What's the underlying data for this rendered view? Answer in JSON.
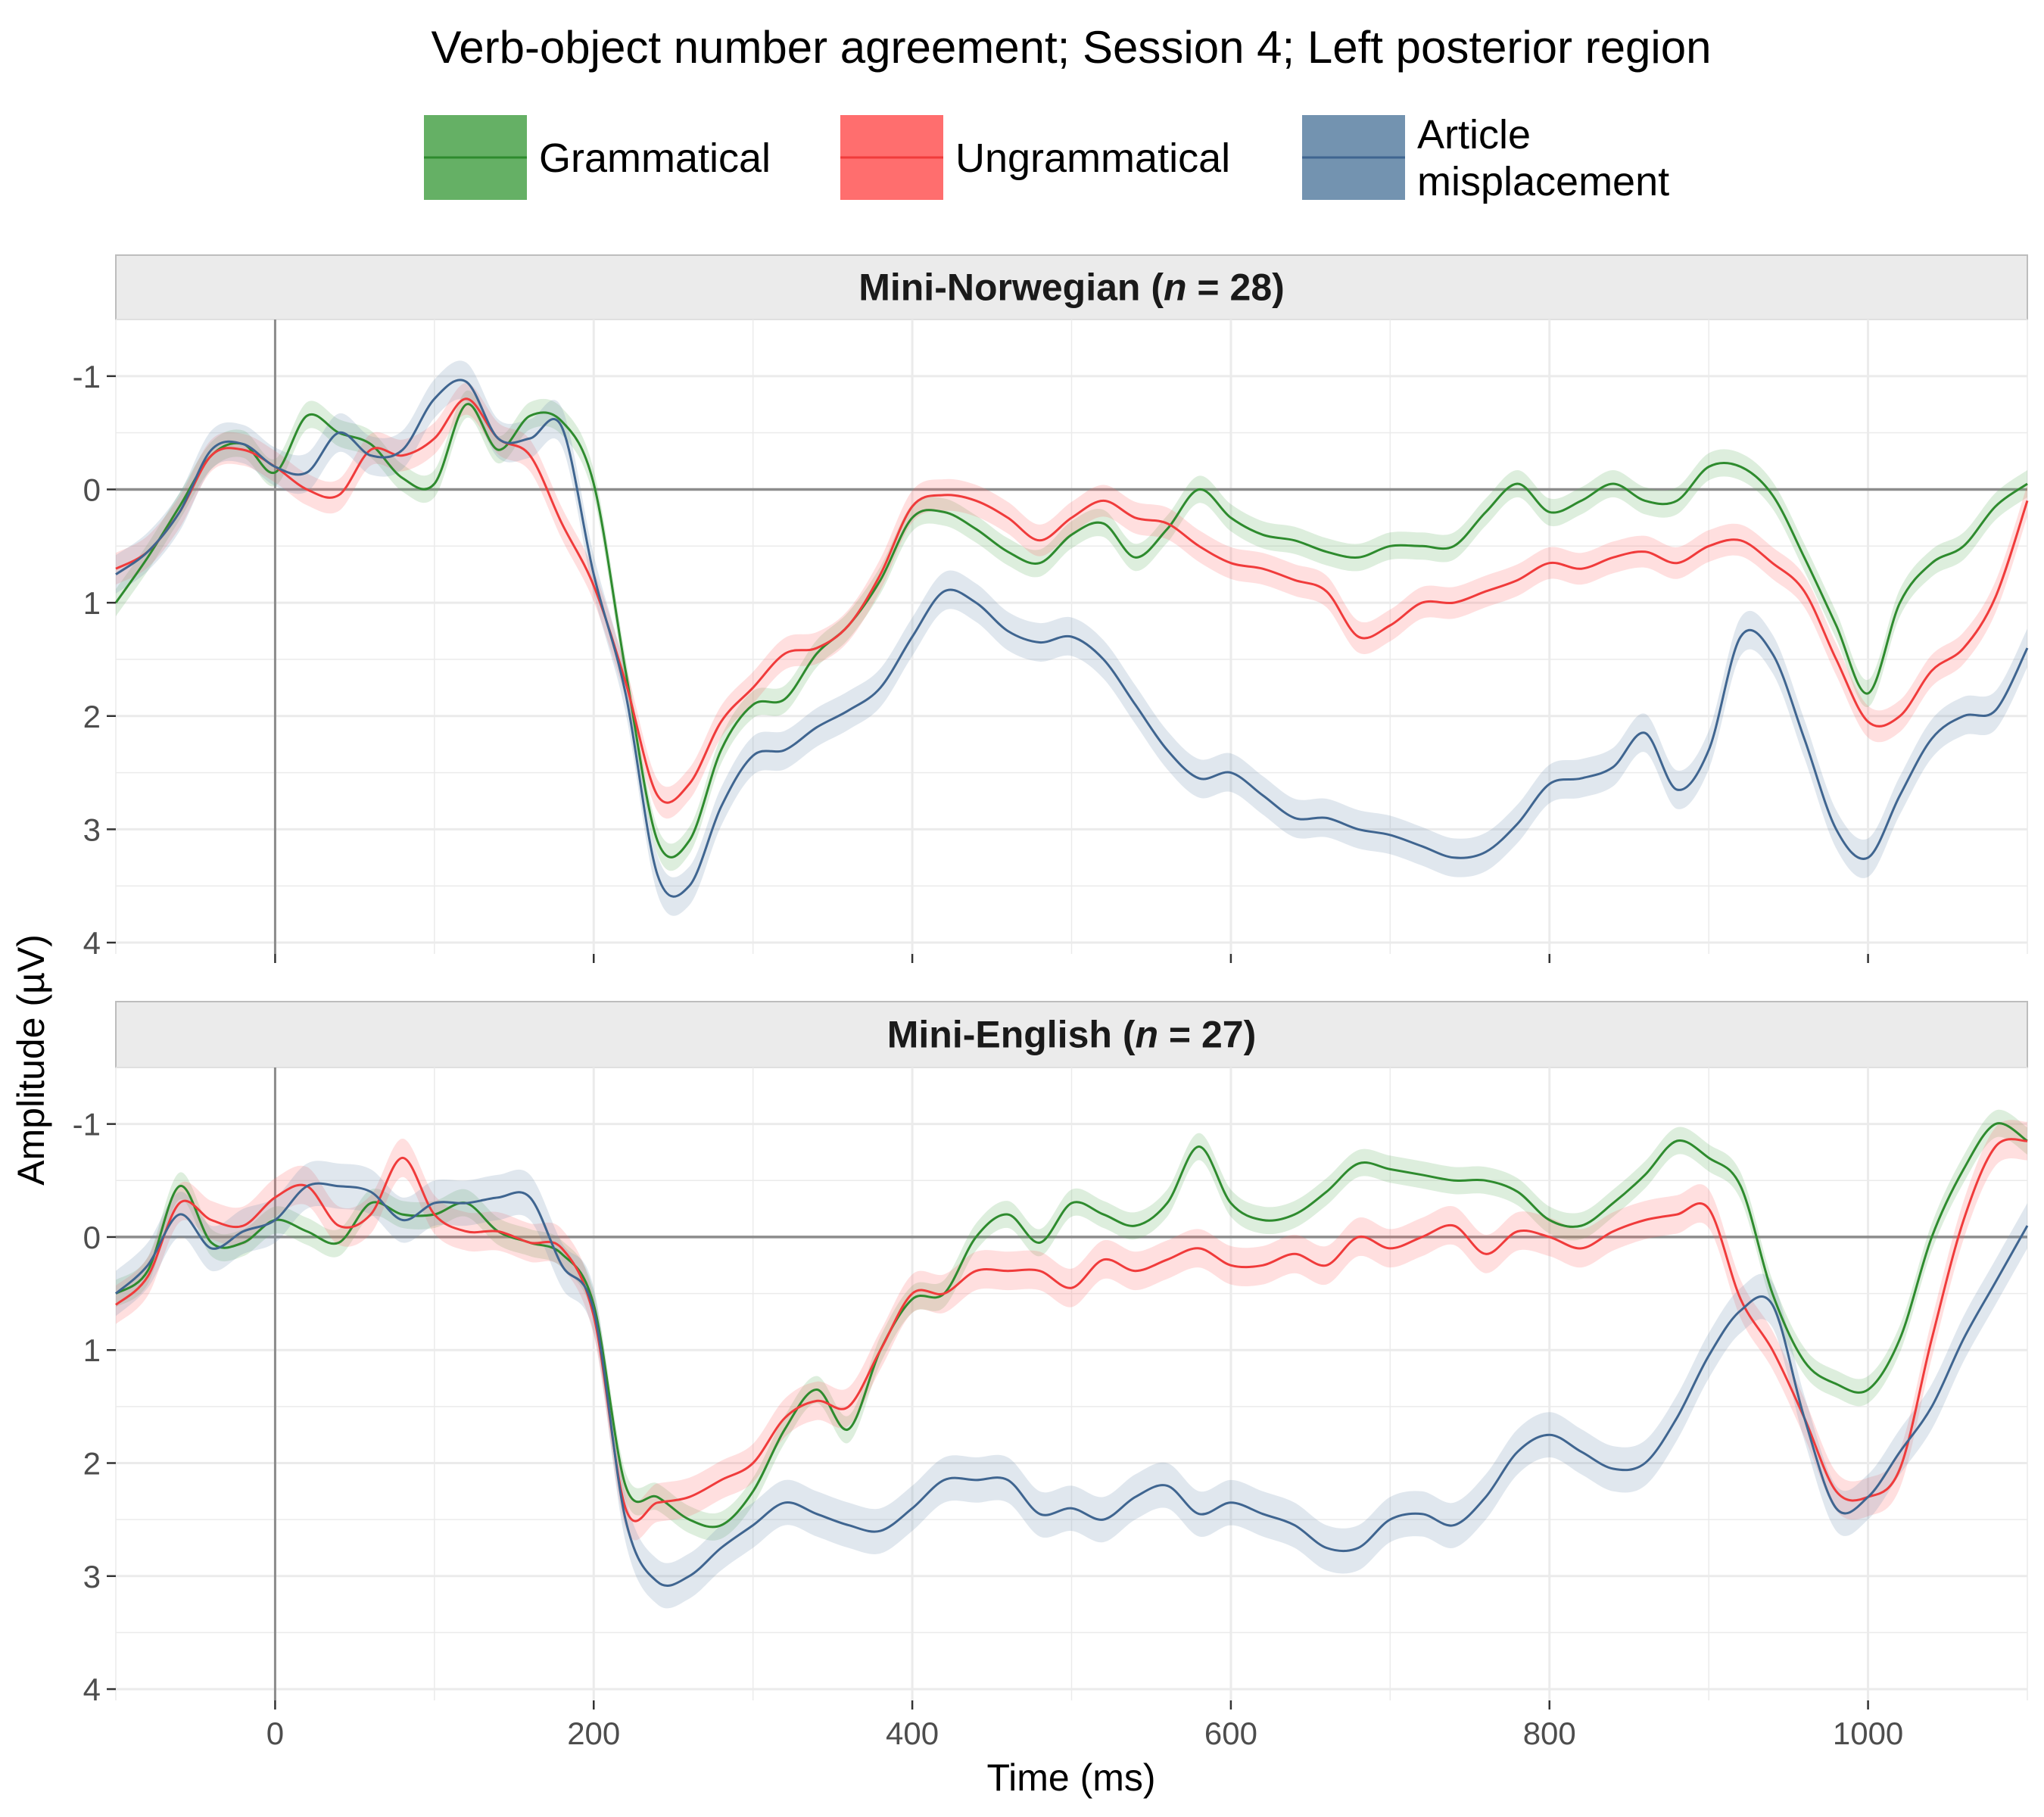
{
  "chart_data": {
    "type": "line",
    "title": "Verb-object number agreement; Session 4; Left posterior region",
    "xlabel": "Time (ms)",
    "ylabel": "Amplitude (µV)",
    "xlim": [
      -100,
      1100
    ],
    "ylim": [
      -1.5,
      4.1
    ],
    "y_reversed": true,
    "x_ticks": [
      0,
      200,
      400,
      600,
      800,
      1000
    ],
    "y_ticks": [
      -1,
      0,
      1,
      2,
      3,
      4
    ],
    "y_tick_labels": [
      "-1",
      "0",
      "1",
      "2",
      "3",
      "4"
    ],
    "legend_position": "top",
    "grid": true,
    "legend": [
      {
        "key": "grammatical",
        "label": "Grammatical",
        "color": "#2e8b2e",
        "fill": "#65b065"
      },
      {
        "key": "ungrammatical",
        "label": "Ungrammatical",
        "color": "#f03b3b",
        "fill": "#ff6e6e"
      },
      {
        "key": "article",
        "label_lines": [
          "Article",
          "misplacement"
        ],
        "color": "#3f6590",
        "fill": "#7393b0"
      }
    ],
    "x": [
      -100,
      -80,
      -60,
      -40,
      -20,
      0,
      20,
      40,
      60,
      80,
      100,
      120,
      140,
      160,
      180,
      200,
      220,
      240,
      260,
      280,
      300,
      320,
      340,
      360,
      380,
      400,
      420,
      440,
      460,
      480,
      500,
      520,
      540,
      560,
      580,
      600,
      620,
      640,
      660,
      680,
      700,
      720,
      740,
      760,
      780,
      800,
      820,
      840,
      860,
      880,
      900,
      920,
      940,
      960,
      980,
      1000,
      1020,
      1040,
      1060,
      1080,
      1100
    ],
    "panels": [
      {
        "strip_prefix": "Mini-Norwegian (",
        "strip_italic": "n",
        "strip_suffix": " = 28)",
        "series": [
          {
            "key": "grammatical",
            "ci": 0.12,
            "values": [
              1.0,
              0.6,
              0.15,
              -0.3,
              -0.4,
              -0.15,
              -0.65,
              -0.5,
              -0.4,
              -0.1,
              -0.05,
              -0.75,
              -0.35,
              -0.65,
              -0.6,
              -0.05,
              1.6,
              3.1,
              3.1,
              2.3,
              1.9,
              1.85,
              1.45,
              1.2,
              0.8,
              0.25,
              0.2,
              0.35,
              0.55,
              0.65,
              0.4,
              0.3,
              0.6,
              0.35,
              0.0,
              0.25,
              0.4,
              0.45,
              0.55,
              0.6,
              0.5,
              0.5,
              0.5,
              0.2,
              -0.05,
              0.2,
              0.1,
              -0.05,
              0.1,
              0.1,
              -0.2,
              -0.2,
              0.05,
              0.6,
              1.2,
              1.8,
              1.0,
              0.65,
              0.5,
              0.15,
              -0.05
            ]
          },
          {
            "key": "ungrammatical",
            "ci": 0.14,
            "values": [
              0.7,
              0.55,
              0.2,
              -0.3,
              -0.35,
              -0.2,
              0.0,
              0.05,
              -0.35,
              -0.3,
              -0.45,
              -0.8,
              -0.45,
              -0.3,
              0.3,
              0.85,
              1.7,
              2.7,
              2.6,
              2.05,
              1.75,
              1.45,
              1.4,
              1.2,
              0.75,
              0.15,
              0.05,
              0.1,
              0.25,
              0.45,
              0.25,
              0.1,
              0.25,
              0.3,
              0.5,
              0.65,
              0.7,
              0.8,
              0.9,
              1.3,
              1.2,
              1.0,
              1.0,
              0.9,
              0.8,
              0.65,
              0.7,
              0.6,
              0.55,
              0.65,
              0.5,
              0.45,
              0.65,
              0.9,
              1.5,
              2.05,
              2.0,
              1.6,
              1.4,
              0.95,
              0.1
            ]
          },
          {
            "key": "article",
            "ci": 0.17,
            "values": [
              0.75,
              0.55,
              0.2,
              -0.35,
              -0.4,
              -0.2,
              -0.15,
              -0.5,
              -0.3,
              -0.35,
              -0.8,
              -0.95,
              -0.45,
              -0.45,
              -0.55,
              0.75,
              1.8,
              3.4,
              3.5,
              2.8,
              2.35,
              2.3,
              2.1,
              1.95,
              1.75,
              1.3,
              0.9,
              1.0,
              1.25,
              1.35,
              1.3,
              1.5,
              1.9,
              2.3,
              2.55,
              2.5,
              2.7,
              2.9,
              2.9,
              3.0,
              3.05,
              3.15,
              3.25,
              3.2,
              2.95,
              2.6,
              2.55,
              2.45,
              2.15,
              2.65,
              2.3,
              1.3,
              1.45,
              2.2,
              3.0,
              3.25,
              2.7,
              2.2,
              2.0,
              1.95,
              1.4
            ]
          }
        ]
      },
      {
        "strip_prefix": "Mini-English (",
        "strip_italic": "n",
        "strip_suffix": " = 27)",
        "series": [
          {
            "key": "grammatical",
            "ci": 0.12,
            "values": [
              0.5,
              0.3,
              -0.45,
              0.05,
              0.05,
              -0.15,
              -0.05,
              0.05,
              -0.3,
              -0.2,
              -0.2,
              -0.3,
              -0.05,
              0.05,
              0.15,
              0.6,
              2.2,
              2.3,
              2.5,
              2.55,
              2.25,
              1.7,
              1.35,
              1.7,
              1.0,
              0.55,
              0.5,
              0.0,
              -0.2,
              0.05,
              -0.3,
              -0.2,
              -0.1,
              -0.3,
              -0.8,
              -0.3,
              -0.15,
              -0.2,
              -0.4,
              -0.65,
              -0.6,
              -0.55,
              -0.5,
              -0.5,
              -0.4,
              -0.15,
              -0.1,
              -0.3,
              -0.55,
              -0.85,
              -0.7,
              -0.45,
              0.5,
              1.1,
              1.3,
              1.35,
              0.9,
              0.0,
              -0.6,
              -1.0,
              -0.85
            ]
          },
          {
            "key": "ungrammatical",
            "ci": 0.17,
            "values": [
              0.6,
              0.35,
              -0.3,
              -0.15,
              -0.1,
              -0.35,
              -0.45,
              -0.1,
              -0.2,
              -0.7,
              -0.2,
              -0.05,
              -0.05,
              0.05,
              0.1,
              0.7,
              2.4,
              2.35,
              2.3,
              2.15,
              2.0,
              1.6,
              1.45,
              1.5,
              1.0,
              0.5,
              0.5,
              0.3,
              0.3,
              0.3,
              0.45,
              0.2,
              0.3,
              0.2,
              0.1,
              0.25,
              0.25,
              0.15,
              0.25,
              0.0,
              0.1,
              0.0,
              -0.1,
              0.15,
              -0.05,
              0.0,
              0.1,
              -0.05,
              -0.15,
              -0.2,
              -0.25,
              0.55,
              1.0,
              1.6,
              2.25,
              2.3,
              2.05,
              0.9,
              -0.15,
              -0.8,
              -0.85
            ]
          },
          {
            "key": "article",
            "ci": 0.2,
            "values": [
              0.5,
              0.25,
              -0.2,
              0.1,
              -0.05,
              -0.15,
              -0.45,
              -0.45,
              -0.4,
              -0.15,
              -0.3,
              -0.3,
              -0.35,
              -0.35,
              0.25,
              0.65,
              2.5,
              3.05,
              3.0,
              2.75,
              2.55,
              2.35,
              2.45,
              2.55,
              2.6,
              2.4,
              2.15,
              2.15,
              2.15,
              2.45,
              2.4,
              2.5,
              2.3,
              2.2,
              2.45,
              2.35,
              2.45,
              2.55,
              2.75,
              2.75,
              2.5,
              2.45,
              2.55,
              2.3,
              1.9,
              1.75,
              1.9,
              2.05,
              2.0,
              1.6,
              1.05,
              0.65,
              0.6,
              1.6,
              2.4,
              2.3,
              1.9,
              1.5,
              0.9,
              0.4,
              -0.1
            ]
          }
        ]
      }
    ]
  }
}
